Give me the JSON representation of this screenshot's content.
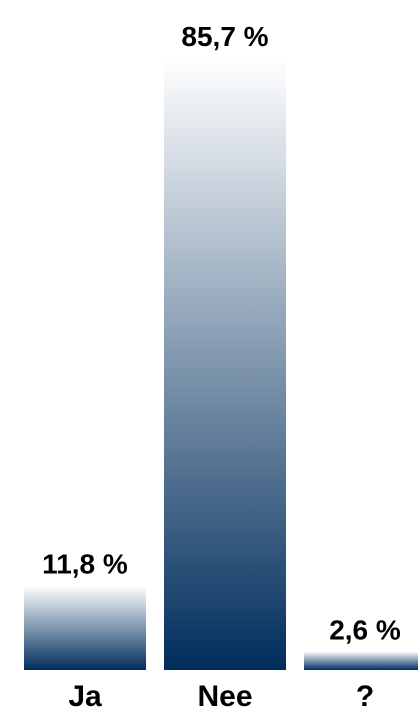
{
  "chart_data": {
    "type": "bar",
    "categories": [
      "Ja",
      "Nee",
      "?"
    ],
    "values": [
      11.8,
      85.7,
      2.6
    ],
    "value_labels": [
      "11,8 %",
      "85,7 %",
      "2,6 %"
    ],
    "ylim": [
      0,
      85.7
    ],
    "grid": false,
    "legend": "none",
    "colors": {
      "bar_top": "#ffffff",
      "bar_bottom": "#002d5c",
      "text": "#000000"
    }
  }
}
